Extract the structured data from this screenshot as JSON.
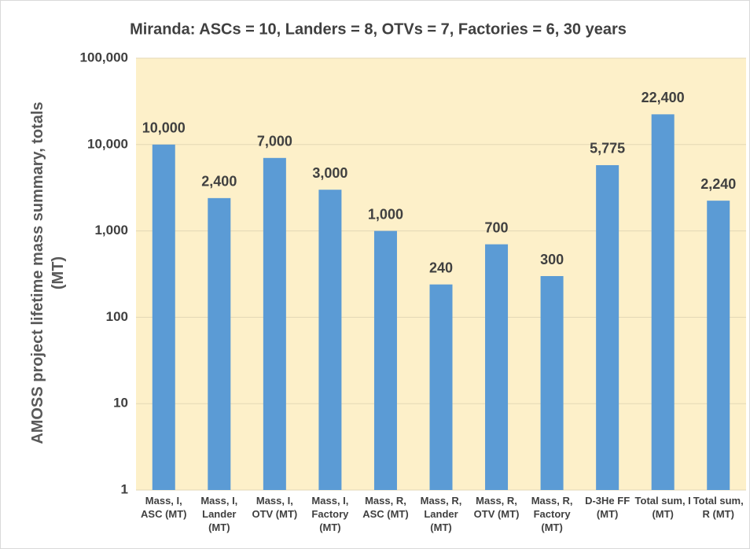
{
  "chart_data": {
    "type": "bar",
    "title": "Miranda: ASCs = 10, Landers = 8, OTVs = 7, Factories = 6, 30 years",
    "y_label": "AMOSS project lifetime mass summary, totals (MT)",
    "categories": [
      "Mass, I, ASC (MT)",
      "Mass, I, Lander (MT)",
      "Mass, I, OTV (MT)",
      "Mass, I, Factory (MT)",
      "Mass, R, ASC (MT)",
      "Mass, R, Lander (MT)",
      "Mass, R, OTV (MT)",
      "Mass, R, Factory (MT)",
      "D-3He FF (MT)",
      "Total sum, I (MT)",
      "Total sum, R (MT)"
    ],
    "values": [
      10000,
      2400,
      7000,
      3000,
      1000,
      240,
      700,
      300,
      5775,
      22400,
      2240
    ],
    "value_labels": [
      "10,000",
      "2,400",
      "7,000",
      "3,000",
      "1,000",
      "240",
      "700",
      "300",
      "5,775",
      "22,400",
      "2,240"
    ],
    "color": "#5b9bd5",
    "log_scale": true,
    "grid": true,
    "ylim": [
      1,
      100000
    ],
    "yticks": [
      1,
      10,
      100,
      {
        "value": 1000,
        "label": "1,000"
      },
      {
        "value": 10000,
        "label": "10,000"
      },
      {
        "value": 100000,
        "label": "100,000"
      }
    ]
  }
}
